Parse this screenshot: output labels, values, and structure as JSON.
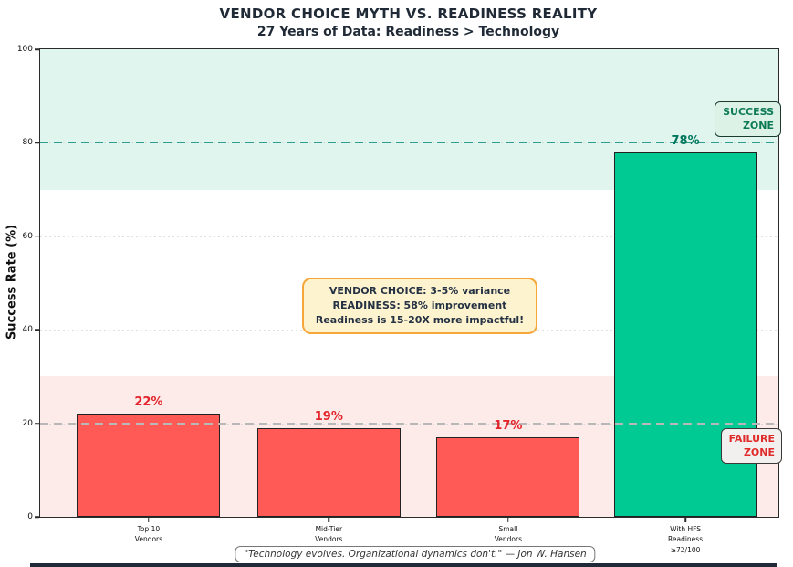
{
  "header": {
    "title": "VENDOR CHOICE MYTH VS. READINESS REALITY",
    "subtitle": "27 Years of Data: Readiness > Technology"
  },
  "chart_data": {
    "type": "bar",
    "title": "VENDOR CHOICE MYTH VS. READINESS REALITY",
    "subtitle": "27 Years of Data: Readiness > Technology",
    "ylabel": "Success Rate (%)",
    "xlabel": "",
    "ylim": [
      0,
      100
    ],
    "yticks": [
      0,
      20,
      40,
      60,
      80,
      100
    ],
    "grid": true,
    "gridlines": [
      20,
      40,
      60,
      80
    ],
    "legend_position": "none",
    "categories": [
      "Top 10\nVendors",
      "Mid-Tier\nVendors",
      "Small\nVendors",
      "With HFS\nReadiness\n≥72/100"
    ],
    "values": [
      22,
      19,
      17,
      78
    ],
    "bar_labels": [
      "22%",
      "19%",
      "17%",
      "78%"
    ],
    "bar_colors": [
      "#ff5a55",
      "#ff5a55",
      "#ff5a55",
      "#00ca94"
    ],
    "bar_label_colors": [
      "#e3242b",
      "#e3242b",
      "#e3242b",
      "#00785f"
    ],
    "zones": {
      "success": {
        "label": "SUCCESS\nZONE",
        "band": [
          70,
          100
        ],
        "band_color": "#e0f5ee",
        "line_y": 80,
        "line_color": "#2f9e8e"
      },
      "failure": {
        "label": "FAILURE\nZONE",
        "band": [
          0,
          30
        ],
        "band_color": "#fcebe9",
        "line_y": 20,
        "line_color": "#b8b8b8"
      }
    },
    "annotation": {
      "text": "VENDOR CHOICE: 3-5% variance\nREADINESS: 58% improvement\nReadiness is 15-20X more impactful!"
    }
  },
  "footer": {
    "quote": "\"Technology evolves. Organizational dynamics don't.\" — Jon W. Hansen"
  }
}
